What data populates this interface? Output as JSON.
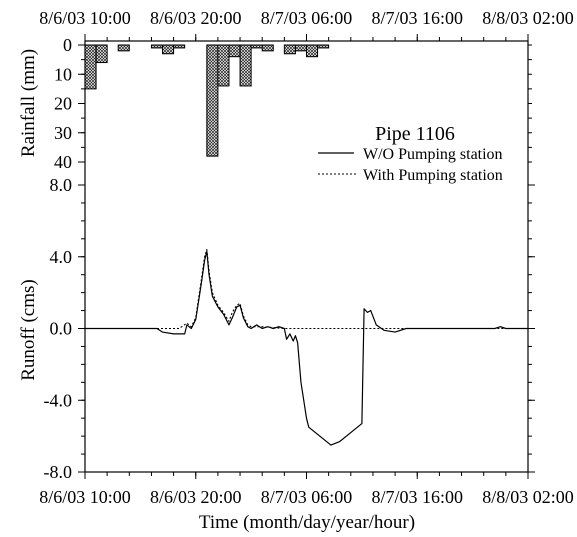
{
  "chart_data": [
    {
      "type": "bar",
      "ylabel": "Rainfall (mm)",
      "ylim": [
        0,
        40
      ],
      "y_inverted": true,
      "yticks": [
        "0",
        "10",
        "20",
        "30",
        "40"
      ],
      "x_axis_position": "top",
      "xlim": [
        "8/6/03 10:00",
        "8/8/03 02:00"
      ],
      "xticks": [
        "8/6/03 10:00",
        "8/6/03 20:00",
        "8/7/03 06:00",
        "8/7/03 16:00",
        "8/8/03 02:00"
      ],
      "grid": false,
      "bars": [
        {
          "x": "8/6/03 10:00",
          "value": 15
        },
        {
          "x": "8/6/03 11:00",
          "value": 6
        },
        {
          "x": "8/6/03 13:00",
          "value": 2
        },
        {
          "x": "8/6/03 16:00",
          "value": 1
        },
        {
          "x": "8/6/03 17:00",
          "value": 3
        },
        {
          "x": "8/6/03 18:00",
          "value": 1
        },
        {
          "x": "8/6/03 21:00",
          "value": 38
        },
        {
          "x": "8/6/03 22:00",
          "value": 14
        },
        {
          "x": "8/6/03 23:00",
          "value": 4
        },
        {
          "x": "8/7/03 00:00",
          "value": 14
        },
        {
          "x": "8/7/03 01:00",
          "value": 1
        },
        {
          "x": "8/7/03 02:00",
          "value": 2
        },
        {
          "x": "8/7/03 04:00",
          "value": 3
        },
        {
          "x": "8/7/03 05:00",
          "value": 2
        },
        {
          "x": "8/7/03 06:00",
          "value": 4
        },
        {
          "x": "8/7/03 07:00",
          "value": 1
        }
      ]
    },
    {
      "type": "line",
      "xlabel": "Time (month/day/year/hour)",
      "ylabel": "Runoff (cms)",
      "xlim": [
        "8/6/03 10:00",
        "8/8/03 02:00"
      ],
      "xticks": [
        "8/6/03 10:00",
        "8/6/03 20:00",
        "8/7/03 06:00",
        "8/7/03 16:00",
        "8/8/03 02:00"
      ],
      "ylim": [
        -8,
        8
      ],
      "yticks": [
        "8.0",
        "4.0",
        "0.0",
        "-4.0",
        "-8.0"
      ],
      "grid": false,
      "legend_title": "Pipe 1106",
      "legend_position": "top-right",
      "series": [
        {
          "name": "W/O Pumping station",
          "line_style": "solid",
          "color": "#000000",
          "points": [
            [
              "8/6/03 10:00",
              0
            ],
            [
              "8/6/03 16:30",
              0
            ],
            [
              "8/6/03 17:00",
              -0.2
            ],
            [
              "8/6/03 18:00",
              -0.3
            ],
            [
              "8/6/03 19:00",
              -0.3
            ],
            [
              "8/6/03 19:12",
              0.2
            ],
            [
              "8/6/03 19:36",
              0.0
            ],
            [
              "8/6/03 20:00",
              0.5
            ],
            [
              "8/6/03 20:30",
              2.5
            ],
            [
              "8/6/03 20:48",
              3.8
            ],
            [
              "8/6/03 21:00",
              4.3
            ],
            [
              "8/6/03 21:12",
              3.0
            ],
            [
              "8/6/03 21:30",
              1.8
            ],
            [
              "8/6/03 22:00",
              1.2
            ],
            [
              "8/6/03 22:30",
              0.8
            ],
            [
              "8/6/03 23:00",
              0.2
            ],
            [
              "8/6/03 23:18",
              0.6
            ],
            [
              "8/6/03 23:42",
              1.2
            ],
            [
              "8/7/03 00:00",
              1.3
            ],
            [
              "8/7/03 00:18",
              0.6
            ],
            [
              "8/7/03 00:42",
              0.1
            ],
            [
              "8/7/03 01:00",
              0.0
            ],
            [
              "8/7/03 01:30",
              0.2
            ],
            [
              "8/7/03 02:00",
              0.0
            ],
            [
              "8/7/03 02:30",
              0.1
            ],
            [
              "8/7/03 03:00",
              0.0
            ],
            [
              "8/7/03 03:30",
              0.1
            ],
            [
              "8/7/03 04:00",
              0.0
            ],
            [
              "8/7/03 04:12",
              -0.6
            ],
            [
              "8/7/03 04:30",
              -0.3
            ],
            [
              "8/7/03 04:48",
              -0.7
            ],
            [
              "8/7/03 05:00",
              -0.4
            ],
            [
              "8/7/03 05:12",
              -0.8
            ],
            [
              "8/7/03 05:30",
              -3.0
            ],
            [
              "8/7/03 06:00",
              -5.0
            ],
            [
              "8/7/03 06:12",
              -5.5
            ],
            [
              "8/7/03 07:00",
              -5.9
            ],
            [
              "8/7/03 08:12",
              -6.5
            ],
            [
              "8/7/03 09:00",
              -6.3
            ],
            [
              "8/7/03 10:00",
              -5.8
            ],
            [
              "8/7/03 11:00",
              -5.3
            ],
            [
              "8/7/03 11:12",
              1.1
            ],
            [
              "8/7/03 11:30",
              0.9
            ],
            [
              "8/7/03 11:48",
              1.0
            ],
            [
              "8/7/03 12:18",
              0.2
            ],
            [
              "8/7/03 13:00",
              -0.1
            ],
            [
              "8/7/03 14:00",
              -0.2
            ],
            [
              "8/7/03 15:00",
              0.0
            ],
            [
              "8/7/03 23:00",
              0.0
            ],
            [
              "8/7/03 23:30",
              0.1
            ],
            [
              "8/8/03 00:00",
              0.0
            ],
            [
              "8/8/03 02:00",
              0.0
            ]
          ]
        },
        {
          "name": "With Pumping station",
          "line_style": "dotted",
          "color": "#000000",
          "points": [
            [
              "8/6/03 10:00",
              0
            ],
            [
              "8/6/03 18:30",
              0
            ],
            [
              "8/6/03 19:12",
              0.3
            ],
            [
              "8/6/03 19:36",
              0.1
            ],
            [
              "8/6/03 20:00",
              0.6
            ],
            [
              "8/6/03 20:30",
              2.7
            ],
            [
              "8/6/03 20:48",
              4.0
            ],
            [
              "8/6/03 21:00",
              4.4
            ],
            [
              "8/6/03 21:12",
              3.2
            ],
            [
              "8/6/03 21:30",
              2.0
            ],
            [
              "8/6/03 22:00",
              1.3
            ],
            [
              "8/6/03 22:30",
              0.9
            ],
            [
              "8/6/03 23:00",
              0.4
            ],
            [
              "8/6/03 23:18",
              0.9
            ],
            [
              "8/6/03 23:42",
              1.3
            ],
            [
              "8/7/03 00:00",
              1.4
            ],
            [
              "8/7/03 00:18",
              0.7
            ],
            [
              "8/7/03 00:42",
              0.2
            ],
            [
              "8/7/03 01:00",
              0.1
            ],
            [
              "8/7/03 02:00",
              0.1
            ],
            [
              "8/7/03 04:00",
              0.0
            ],
            [
              "8/8/03 02:00",
              0.0
            ]
          ]
        }
      ]
    }
  ]
}
